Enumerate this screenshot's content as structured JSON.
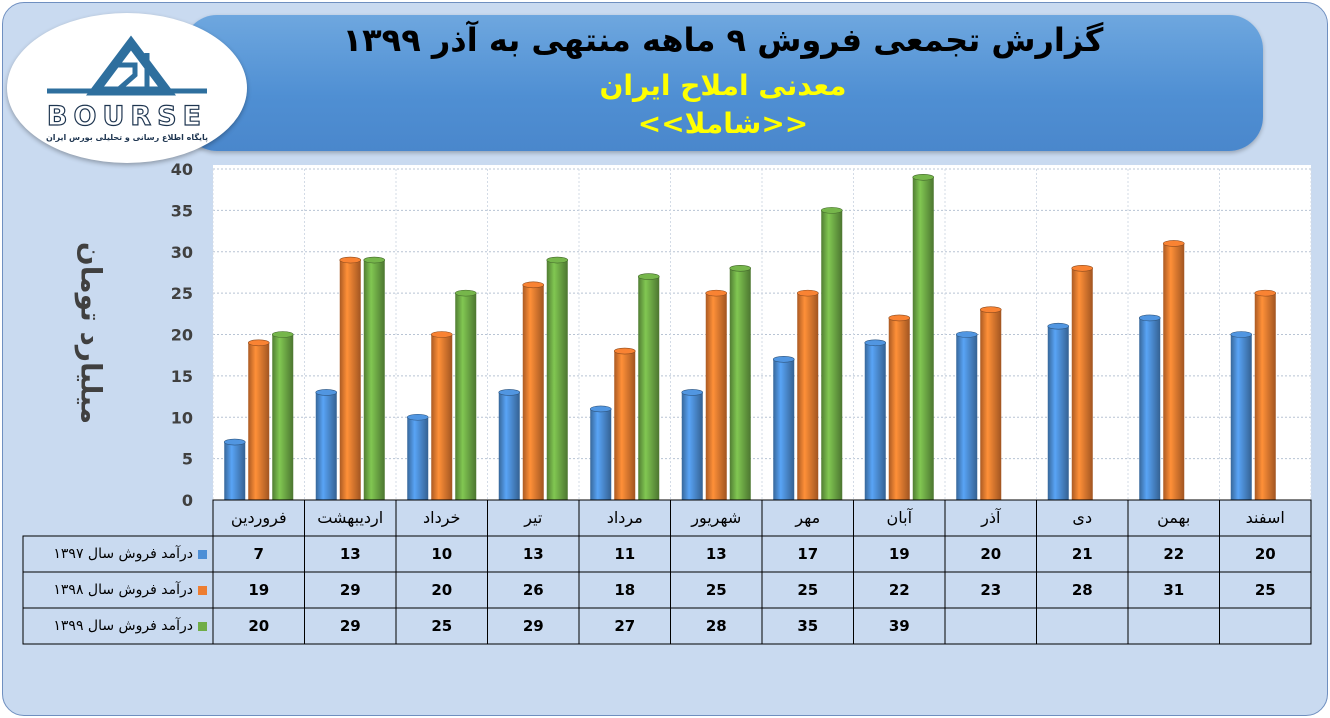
{
  "header": {
    "title": "گزارش تجمعی فروش ۹ ماهه منتهی به آذر ۱۳۹۹",
    "company": "معدنی املاح ایران",
    "symbol": "<<شاملا>>"
  },
  "logo": {
    "brand": "BOURSE",
    "number": "24",
    "tagline": "پایگاه اطلاع رسانی و تحلیلی بورس ایران"
  },
  "colors": {
    "s1397": "#4d8fd6",
    "s1398": "#ed7d31",
    "s1399": "#70ad47",
    "banner": "#5b9bd5",
    "highlight": "#ffff00"
  },
  "chart_data": {
    "type": "bar",
    "ylabel": "میلیارد تومان",
    "ylim": [
      0,
      40
    ],
    "yticks": [
      "0",
      "5",
      "10",
      "15",
      "20",
      "25",
      "30",
      "35",
      "40"
    ],
    "categories": [
      "فروردین",
      "اردیبهشت",
      "خرداد",
      "تیر",
      "مرداد",
      "شهریور",
      "مهر",
      "آبان",
      "آذر",
      "دی",
      "بهمن",
      "اسفند"
    ],
    "series": [
      {
        "name": "درآمد فروش سال ۱۳۹۷",
        "values": [
          7,
          13,
          10,
          13,
          11,
          13,
          17,
          19,
          20,
          21,
          22,
          20
        ]
      },
      {
        "name": "درآمد فروش سال ۱۳۹۸",
        "values": [
          19,
          29,
          20,
          26,
          18,
          25,
          25,
          22,
          23,
          28,
          31,
          25
        ]
      },
      {
        "name": "درآمد فروش سال ۱۳۹۹",
        "values": [
          20,
          29,
          25,
          29,
          27,
          28,
          35,
          39,
          null,
          null,
          null,
          null
        ]
      }
    ],
    "grid": true,
    "legend": "data-table-left"
  }
}
